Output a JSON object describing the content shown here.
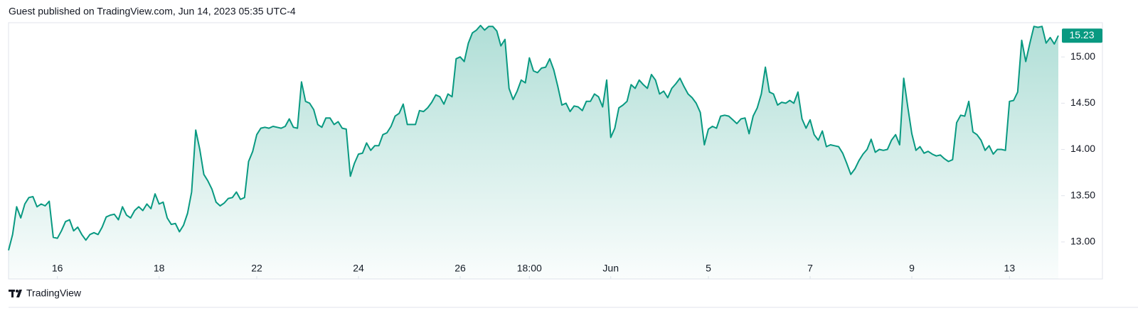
{
  "header": {
    "text": "Guest published on TradingView.com, Jun 14, 2023 05:35 UTC-4"
  },
  "footer": {
    "brand": "TradingView"
  },
  "chart_data": {
    "type": "area",
    "color": "#089981",
    "values": [
      12.91,
      13.08,
      13.38,
      13.26,
      13.41,
      13.48,
      13.49,
      13.38,
      13.41,
      13.39,
      13.44,
      13.05,
      13.04,
      13.12,
      13.22,
      13.24,
      13.12,
      13.16,
      13.08,
      13.02,
      13.08,
      13.1,
      13.08,
      13.16,
      13.27,
      13.29,
      13.3,
      13.24,
      13.38,
      13.29,
      13.26,
      13.34,
      13.38,
      13.34,
      13.41,
      13.36,
      13.52,
      13.41,
      13.43,
      13.26,
      13.19,
      13.2,
      13.11,
      13.18,
      13.31,
      13.54,
      14.21,
      14.0,
      13.73,
      13.66,
      13.57,
      13.43,
      13.39,
      13.42,
      13.47,
      13.48,
      13.54,
      13.46,
      13.48,
      13.87,
      13.98,
      14.16,
      14.23,
      14.24,
      14.23,
      14.25,
      14.24,
      14.23,
      14.25,
      14.33,
      14.24,
      14.23,
      14.73,
      14.52,
      14.5,
      14.43,
      14.27,
      14.24,
      14.34,
      14.34,
      14.27,
      14.3,
      14.23,
      14.22,
      13.71,
      13.85,
      13.95,
      13.96,
      14.07,
      13.99,
      14.04,
      14.04,
      14.16,
      14.18,
      14.25,
      14.36,
      14.39,
      14.49,
      14.27,
      14.27,
      14.27,
      14.42,
      14.41,
      14.45,
      14.51,
      14.59,
      14.57,
      14.49,
      14.6,
      14.57,
      14.98,
      15.0,
      14.95,
      15.15,
      15.26,
      15.29,
      15.34,
      15.29,
      15.33,
      15.33,
      15.28,
      15.12,
      15.19,
      14.66,
      14.54,
      14.63,
      14.75,
      14.72,
      14.99,
      14.85,
      14.83,
      14.88,
      14.89,
      14.98,
      14.86,
      14.68,
      14.48,
      14.5,
      14.41,
      14.47,
      14.46,
      14.42,
      14.52,
      14.52,
      14.6,
      14.57,
      14.46,
      14.75,
      14.13,
      14.23,
      14.45,
      14.48,
      14.52,
      14.7,
      14.66,
      14.75,
      14.7,
      14.66,
      14.81,
      14.75,
      14.6,
      14.63,
      14.56,
      14.66,
      14.71,
      14.77,
      14.68,
      14.6,
      14.56,
      14.5,
      14.4,
      14.05,
      14.22,
      14.25,
      14.23,
      14.36,
      14.37,
      14.36,
      14.32,
      14.28,
      14.33,
      14.34,
      14.17,
      14.36,
      14.45,
      14.6,
      14.89,
      14.62,
      14.6,
      14.48,
      14.51,
      14.5,
      14.53,
      14.5,
      14.62,
      14.33,
      14.23,
      14.32,
      14.16,
      14.1,
      14.2,
      14.03,
      14.05,
      14.04,
      14.03,
      13.96,
      13.85,
      13.73,
      13.79,
      13.88,
      13.95,
      14.0,
      14.11,
      13.97,
      14.0,
      13.99,
      14.0,
      14.1,
      14.16,
      14.05,
      14.77,
      14.46,
      14.17,
      13.99,
      14.03,
      13.96,
      13.98,
      13.95,
      13.93,
      13.94,
      13.9,
      13.87,
      13.89,
      14.29,
      14.37,
      14.36,
      14.52,
      14.19,
      14.16,
      14.1,
      13.99,
      14.04,
      13.95,
      14.0,
      14.0,
      13.99,
      14.52,
      14.53,
      14.62,
      15.18,
      14.95,
      15.15,
      15.33,
      15.32,
      15.33,
      15.15,
      15.21,
      15.14,
      15.23
    ],
    "xticks": [
      {
        "value": 12,
        "label": "16"
      },
      {
        "value": 37,
        "label": "18"
      },
      {
        "value": 61,
        "label": "22"
      },
      {
        "value": 86,
        "label": "24"
      },
      {
        "value": 111,
        "label": "26"
      },
      {
        "value": 128,
        "label": "18:00"
      },
      {
        "value": 148,
        "label": "Jun"
      },
      {
        "value": 172,
        "label": "5"
      },
      {
        "value": 197,
        "label": "7"
      },
      {
        "value": 222,
        "label": "9"
      },
      {
        "value": 246,
        "label": "13"
      }
    ],
    "ylim": [
      12.6,
      15.37
    ],
    "yticks": [
      {
        "value": 13,
        "label": "13.00"
      },
      {
        "value": 13.5,
        "label": "13.50"
      },
      {
        "value": 14,
        "label": "14.00"
      },
      {
        "value": 14.5,
        "label": "14.50"
      },
      {
        "value": 15,
        "label": "15.00"
      }
    ]
  }
}
